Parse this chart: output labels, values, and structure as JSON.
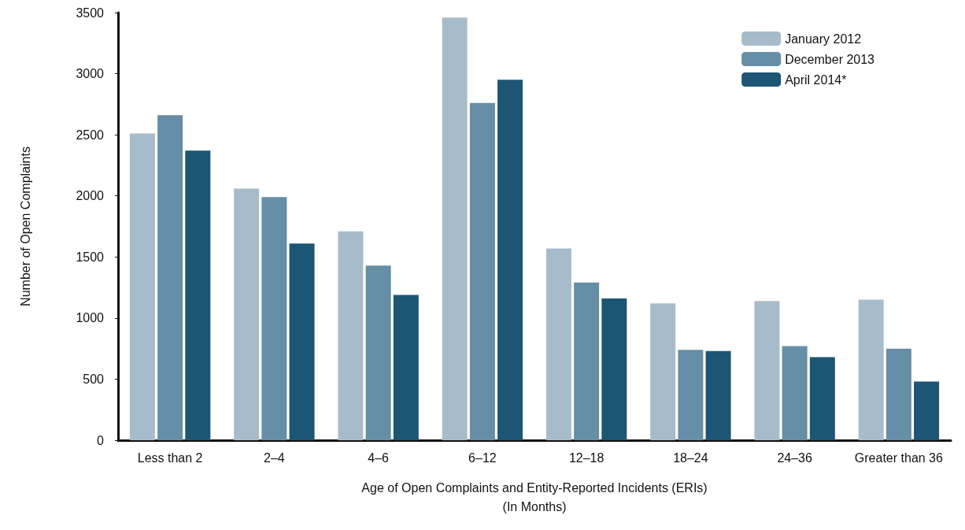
{
  "chart_data": {
    "type": "bar",
    "xlabel": "Age of Open Complaints and Entity-Reported Incidents (ERIs)\n(In Months)",
    "ylabel": "Number of Open Complaints",
    "categories": [
      "Less than 2",
      "2–4",
      "4–6",
      "6–12",
      "12–18",
      "18–24",
      "24–36",
      "Greater than 36"
    ],
    "series": [
      {
        "name": "January 2012",
        "color": "#a7bccb",
        "values": [
          2510,
          2060,
          1710,
          3460,
          1570,
          1120,
          1140,
          1150
        ]
      },
      {
        "name": "December 2013",
        "color": "#668ea6",
        "values": [
          2660,
          1990,
          1430,
          2760,
          1290,
          740,
          770,
          750
        ]
      },
      {
        "name": "April 2014*",
        "color": "#1d5574",
        "values": [
          2370,
          1610,
          1190,
          2950,
          1160,
          730,
          680,
          480
        ]
      }
    ],
    "ylim": [
      0,
      3500
    ],
    "yticks": [
      0,
      500,
      1000,
      1500,
      2000,
      2500,
      3000,
      3500
    ],
    "grid": false,
    "legend": "top right"
  }
}
